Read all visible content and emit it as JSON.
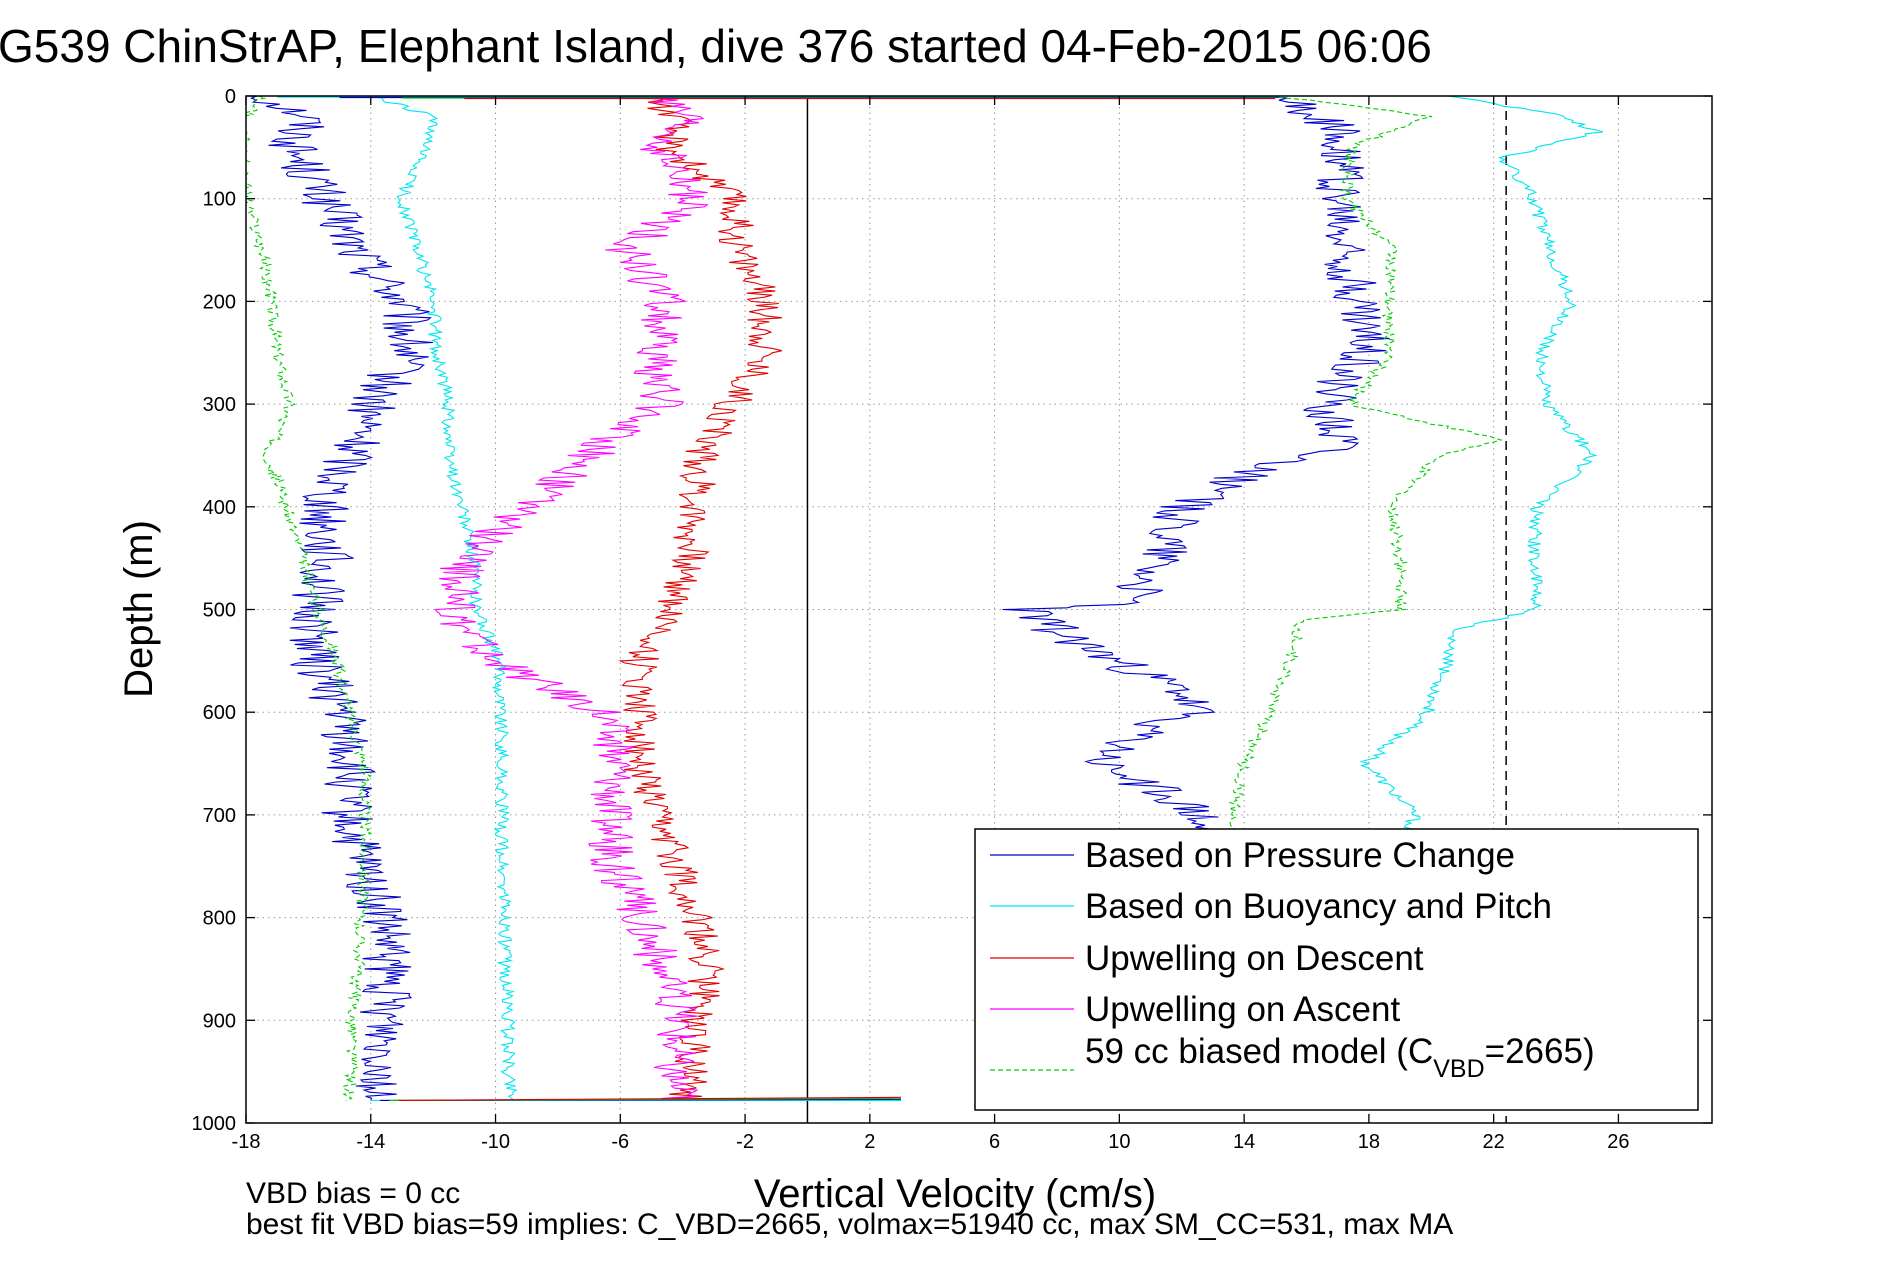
{
  "chart_data": {
    "type": "line",
    "title": "G539 ChinStrAP, Elephant Island, dive 376 started 04-Feb-2015 06:06",
    "xlabel": "Vertical Velocity (cm/s)",
    "ylabel": "Depth (m)",
    "xlim": [
      -18,
      29
    ],
    "ylim": [
      0,
      1000
    ],
    "y_reversed": true,
    "grid": true,
    "grid_style": "dotted",
    "legend_placement": "bottom-right",
    "xticks": [
      "-18",
      "-14",
      "-10",
      "-6",
      "-2",
      "2",
      "6",
      "10",
      "14",
      "18",
      "22",
      "26"
    ],
    "yticks": [
      "0",
      "100",
      "200",
      "300",
      "400",
      "500",
      "600",
      "700",
      "800",
      "900",
      "1000"
    ],
    "reference_lines": [
      {
        "x": 0,
        "style": "solid",
        "color": "#000000"
      },
      {
        "x": 22.4,
        "style": "dashed",
        "color": "#000000"
      }
    ],
    "legend": [
      {
        "label": "Based on Pressure Change",
        "color": "#0000cc",
        "style": "solid"
      },
      {
        "label": "Based on Buoyancy and Pitch",
        "color": "#00e5ee",
        "style": "solid"
      },
      {
        "label": "Upwelling on Descent",
        "color": "#e00000",
        "style": "solid"
      },
      {
        "label": "Upwelling on Ascent",
        "color": "#ff00ff",
        "style": "solid"
      },
      {
        "label": "59 cc biased model (C",
        "sub": "VBD",
        "suffix": "=2665)",
        "color": "#00cc00",
        "style": "dashed"
      }
    ],
    "series": [
      {
        "name": "Based on Pressure Change",
        "color": "#0000cc",
        "style": "solid",
        "points": [
          [
            -17.5,
            0
          ],
          [
            -16,
            20
          ],
          [
            -16.5,
            50
          ],
          [
            -15.5,
            100
          ],
          [
            -14.5,
            150
          ],
          [
            -13,
            200
          ],
          [
            -12.8,
            250
          ],
          [
            -14,
            300
          ],
          [
            -14.6,
            350
          ],
          [
            -15.5,
            400
          ],
          [
            -15.4,
            450
          ],
          [
            -15.8,
            500
          ],
          [
            -15.8,
            550
          ],
          [
            -14.9,
            600
          ],
          [
            -14.7,
            650
          ],
          [
            -14.8,
            700
          ],
          [
            -14.3,
            750
          ],
          [
            -13.6,
            800
          ],
          [
            -13.5,
            850
          ],
          [
            -13.5,
            900
          ],
          [
            -13.5,
            950
          ],
          [
            -14,
            978
          ]
        ]
      },
      {
        "name": "Based on Buoyancy and Pitch",
        "color": "#00e5ee",
        "style": "solid",
        "points": [
          [
            -14,
            0
          ],
          [
            -12,
            20
          ],
          [
            -12.3,
            50
          ],
          [
            -13,
            100
          ],
          [
            -12.5,
            150
          ],
          [
            -12,
            200
          ],
          [
            -11.9,
            250
          ],
          [
            -11.5,
            300
          ],
          [
            -11.5,
            350
          ],
          [
            -11.1,
            400
          ],
          [
            -10.7,
            450
          ],
          [
            -10.6,
            500
          ],
          [
            -9.9,
            550
          ],
          [
            -9.8,
            600
          ],
          [
            -9.8,
            650
          ],
          [
            -9.8,
            700
          ],
          [
            -9.8,
            750
          ],
          [
            -9.7,
            800
          ],
          [
            -9.7,
            850
          ],
          [
            -9.6,
            900
          ],
          [
            -9.6,
            950
          ],
          [
            -9.4,
            978
          ]
        ]
      },
      {
        "name": "Upwelling on Descent",
        "color": "#e00000",
        "style": "solid",
        "points": [
          [
            -5,
            0
          ],
          [
            -4.3,
            20
          ],
          [
            -4.4,
            50
          ],
          [
            -2.4,
            100
          ],
          [
            -2.2,
            150
          ],
          [
            -1.4,
            200
          ],
          [
            -1.3,
            250
          ],
          [
            -2.4,
            300
          ],
          [
            -3.4,
            350
          ],
          [
            -3.6,
            400
          ],
          [
            -3.8,
            450
          ],
          [
            -4.3,
            500
          ],
          [
            -5.4,
            550
          ],
          [
            -5.3,
            600
          ],
          [
            -5.4,
            650
          ],
          [
            -4.9,
            700
          ],
          [
            -4.1,
            750
          ],
          [
            -3.6,
            800
          ],
          [
            -3.2,
            850
          ],
          [
            -3.5,
            900
          ],
          [
            -3.7,
            950
          ],
          [
            -4,
            978
          ]
        ]
      },
      {
        "name": "Upwelling on Ascent",
        "color": "#ff00ff",
        "style": "solid",
        "points": [
          [
            -5,
            0
          ],
          [
            -4,
            20
          ],
          [
            -4.8,
            50
          ],
          [
            -3.7,
            100
          ],
          [
            -5.8,
            150
          ],
          [
            -4.6,
            200
          ],
          [
            -4.9,
            250
          ],
          [
            -4.7,
            300
          ],
          [
            -7,
            350
          ],
          [
            -9,
            400
          ],
          [
            -11,
            450
          ],
          [
            -11.4,
            500
          ],
          [
            -10.1,
            550
          ],
          [
            -6.5,
            600
          ],
          [
            -6.1,
            650
          ],
          [
            -6.3,
            700
          ],
          [
            -6.3,
            750
          ],
          [
            -5.3,
            800
          ],
          [
            -4.7,
            850
          ],
          [
            -4.1,
            900
          ],
          [
            -4.3,
            950
          ],
          [
            -4,
            978
          ]
        ]
      },
      {
        "name": "59 cc biased model (C_VBD=2665)",
        "color": "#00cc00",
        "style": "dashed",
        "points": [
          [
            -17.5,
            0
          ],
          [
            -18,
            20
          ],
          [
            -18,
            50
          ],
          [
            -18,
            100
          ],
          [
            -17.5,
            150
          ],
          [
            -17.2,
            200
          ],
          [
            -17,
            250
          ],
          [
            -16.6,
            300
          ],
          [
            -17.3,
            350
          ],
          [
            -16.7,
            400
          ],
          [
            -16.2,
            450
          ],
          [
            -15.7,
            500
          ],
          [
            -15.1,
            550
          ],
          [
            -14.7,
            600
          ],
          [
            -14.2,
            650
          ],
          [
            -14.2,
            700
          ],
          [
            -14.2,
            750
          ],
          [
            -14.3,
            800
          ],
          [
            -14.4,
            850
          ],
          [
            -14.6,
            900
          ],
          [
            -14.6,
            950
          ],
          [
            -14.8,
            978
          ]
        ]
      },
      {
        "name": "Based on Pressure Change (ascent)",
        "color": "#0000cc",
        "style": "solid",
        "points": [
          [
            15,
            0
          ],
          [
            16.5,
            20
          ],
          [
            17.3,
            50
          ],
          [
            17,
            100
          ],
          [
            17.2,
            150
          ],
          [
            17.6,
            200
          ],
          [
            17.9,
            250
          ],
          [
            16.6,
            300
          ],
          [
            17.3,
            340
          ],
          [
            14,
            370
          ],
          [
            12,
            400
          ],
          [
            11.5,
            450
          ],
          [
            10.2,
            495
          ],
          [
            7,
            500
          ],
          [
            8.5,
            530
          ],
          [
            10.5,
            560
          ],
          [
            12,
            580
          ],
          [
            12.3,
            600
          ],
          [
            10.6,
            620
          ],
          [
            9.3,
            650
          ],
          [
            11.5,
            680
          ],
          [
            12.5,
            700
          ],
          [
            12.5,
            720
          ]
        ]
      },
      {
        "name": "Based on Buoyancy and Pitch (ascent)",
        "color": "#00e5ee",
        "style": "solid",
        "points": [
          [
            20.7,
            0
          ],
          [
            24.3,
            20
          ],
          [
            25.3,
            35
          ],
          [
            22.3,
            60
          ],
          [
            23.3,
            100
          ],
          [
            23.8,
            150
          ],
          [
            24.5,
            200
          ],
          [
            23.5,
            250
          ],
          [
            23.7,
            300
          ],
          [
            25.2,
            350
          ],
          [
            23.4,
            400
          ],
          [
            23.3,
            450
          ],
          [
            23.4,
            500
          ],
          [
            20.6,
            520
          ],
          [
            20.5,
            550
          ],
          [
            19.9,
            600
          ],
          [
            17.9,
            650
          ],
          [
            19.5,
            700
          ],
          [
            19.2,
            720
          ]
        ]
      },
      {
        "name": "59 cc biased model (ascent)",
        "color": "#00cc00",
        "style": "dashed",
        "points": [
          [
            15,
            0
          ],
          [
            20,
            20
          ],
          [
            17.4,
            50
          ],
          [
            17.3,
            100
          ],
          [
            18.8,
            150
          ],
          [
            18.6,
            200
          ],
          [
            18.7,
            250
          ],
          [
            17.4,
            300
          ],
          [
            22.3,
            335
          ],
          [
            20.2,
            350
          ],
          [
            18.7,
            400
          ],
          [
            19,
            450
          ],
          [
            19,
            500
          ],
          [
            15.8,
            510
          ],
          [
            15.5,
            550
          ],
          [
            14.8,
            600
          ],
          [
            14,
            650
          ],
          [
            13.6,
            700
          ],
          [
            13.5,
            720
          ]
        ]
      }
    ]
  },
  "footer": {
    "line1": "VBD bias = 0 cc",
    "line2": "best fit VBD bias=59 implies: C_VBD=2665, volmax=51940 cc, max SM_CC=531, max MA"
  }
}
